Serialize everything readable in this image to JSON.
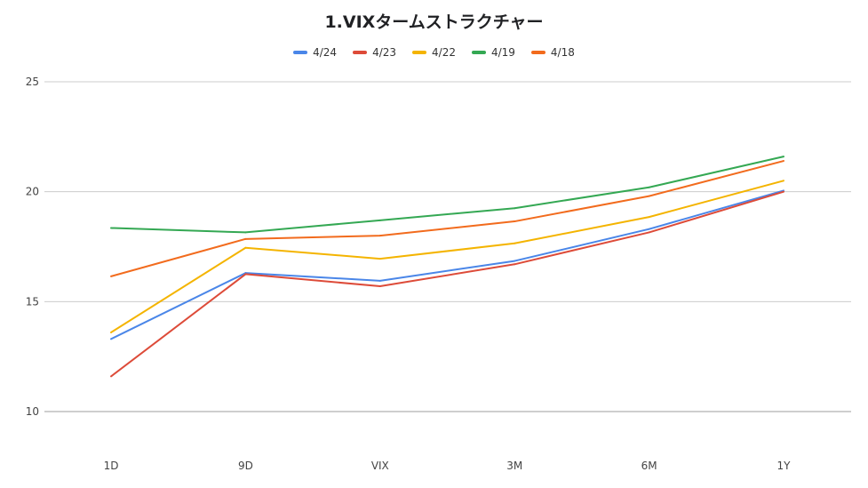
{
  "chart_data": {
    "type": "line",
    "title": "1.VIXタームストラクチャー",
    "xlabel": "",
    "ylabel": "",
    "categories": [
      "1D",
      "9D",
      "VIX",
      "3M",
      "6M",
      "1Y"
    ],
    "ylim": [
      10,
      25
    ],
    "yticks": [
      10,
      15,
      20,
      25
    ],
    "grid": true,
    "legend_position": "top",
    "series": [
      {
        "name": "4/24",
        "color": "#4a86e8",
        "values": [
          13.3,
          16.3,
          15.95,
          16.85,
          18.3,
          20.05
        ]
      },
      {
        "name": "4/23",
        "color": "#dd4b39",
        "values": [
          11.6,
          16.25,
          15.7,
          16.7,
          18.15,
          20.0
        ]
      },
      {
        "name": "4/22",
        "color": "#f4b400",
        "values": [
          13.6,
          17.45,
          16.95,
          17.65,
          18.85,
          20.5
        ]
      },
      {
        "name": "4/19",
        "color": "#34a853",
        "values": [
          18.35,
          18.15,
          18.7,
          19.25,
          20.2,
          21.6
        ]
      },
      {
        "name": "4/18",
        "color": "#f26b1d",
        "values": [
          16.15,
          17.85,
          18.0,
          18.65,
          19.8,
          21.4
        ]
      }
    ]
  }
}
